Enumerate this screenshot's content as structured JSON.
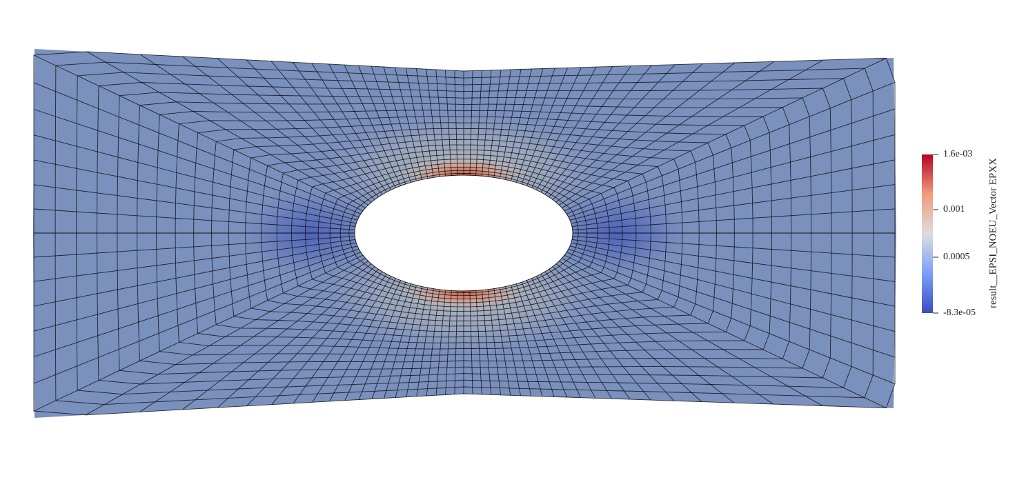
{
  "viewer": {
    "field_name": "result__EPSI_NOEU_Vector EPXX",
    "colormap": "cool-to-warm"
  },
  "legend": {
    "title": "result__EPSI_NOEU_Vector EPXX",
    "min_label": "-8.3e-05",
    "max_label": "1.6e-03",
    "range": [
      -8.3e-05,
      0.0016
    ],
    "ticks": [
      {
        "label": "1.6e-03",
        "value": 0.0016
      },
      {
        "label": "0.001",
        "value": 0.001
      },
      {
        "label": "0.0005",
        "value": 0.0005
      },
      {
        "label": "-8.3e-05",
        "value": -8.3e-05
      }
    ],
    "colors": {
      "low": "#3b4cc0",
      "mid": "#dddddd",
      "high": "#b40426",
      "mesh_base": "#7a90bd",
      "edge": "#111111"
    }
  }
}
